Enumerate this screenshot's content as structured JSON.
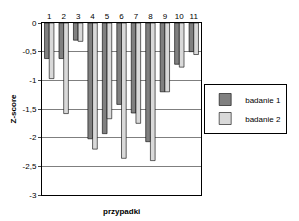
{
  "chart_data": {
    "type": "bar",
    "x_label": "przypadki",
    "y_label": "Z-score",
    "categories": [
      "1",
      "2",
      "3",
      "4",
      "5",
      "6",
      "7",
      "8",
      "9",
      "10",
      "11"
    ],
    "series": [
      {
        "name": "badanie 1",
        "color": "#808080",
        "values": [
          -0.62,
          -0.62,
          -0.3,
          -2.02,
          -1.93,
          -1.42,
          -1.57,
          -2.07,
          -1.2,
          -0.72,
          -0.5
        ]
      },
      {
        "name": "badanie 2",
        "color": "#d9d9d9",
        "values": [
          -0.97,
          -1.58,
          -0.32,
          -2.2,
          -1.67,
          -2.36,
          -1.75,
          -2.4,
          -1.2,
          -0.77,
          -0.55
        ]
      }
    ],
    "ylim": [
      -3,
      0
    ],
    "yticks": [
      -3,
      {
        "value": -2.5,
        "label": "-2,5"
      },
      -2,
      {
        "value": -1.5,
        "label": "-1,5"
      },
      -1,
      {
        "value": -0.5,
        "label": "-0,5"
      },
      0
    ],
    "grid": true,
    "legend": "right"
  }
}
